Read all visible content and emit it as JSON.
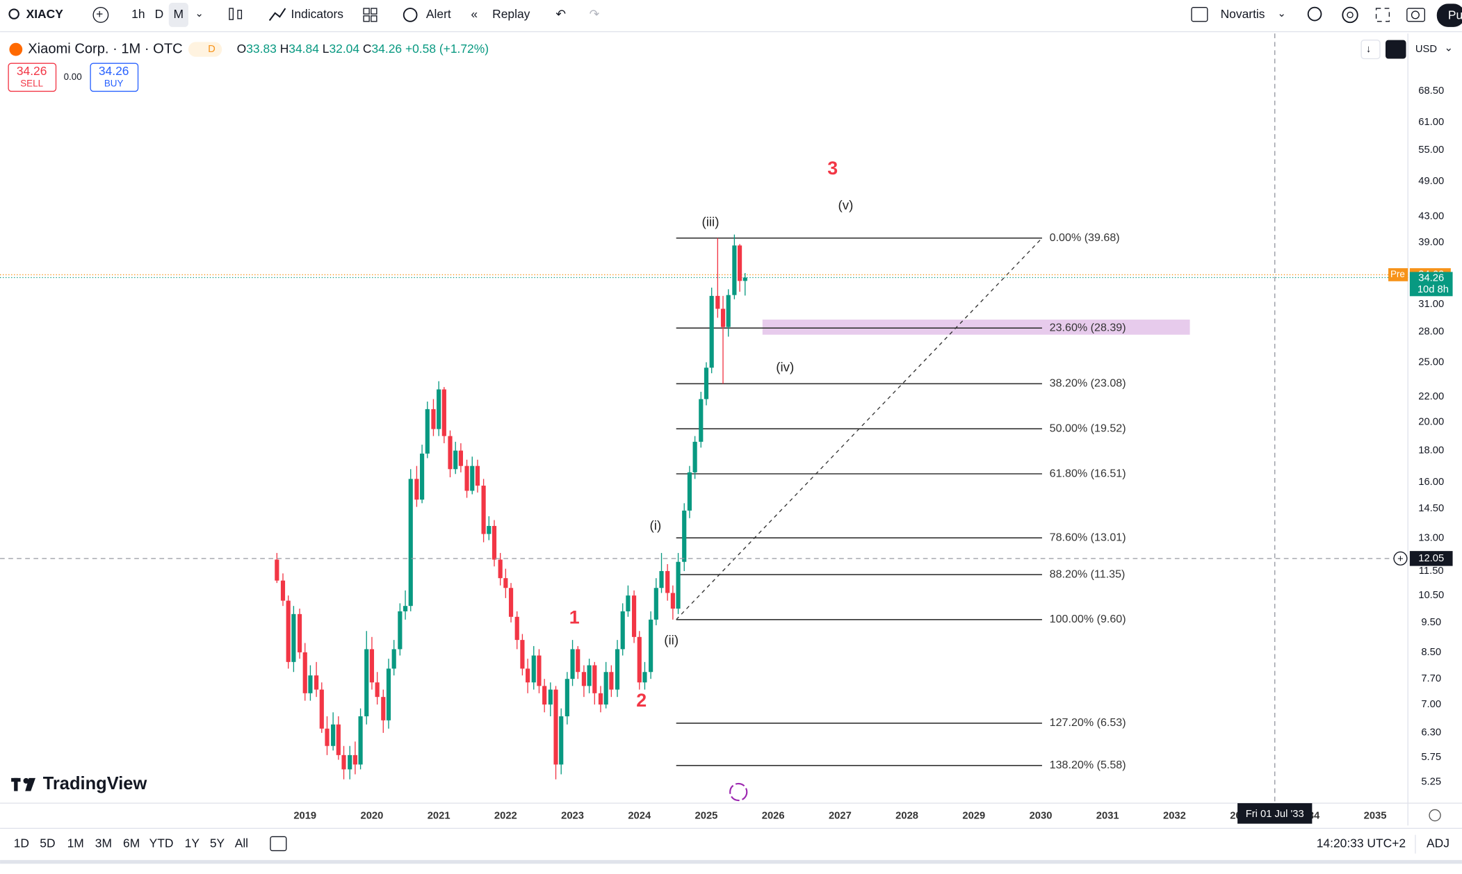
{
  "toolbar": {
    "symbol": "XIACY",
    "intervals": [
      "1h",
      "D",
      "M"
    ],
    "indicators": "Indicators",
    "alert": "Alert",
    "replay": "Replay",
    "watch": "Novartis",
    "user": "Pu"
  },
  "legend": {
    "title": "Xiaomi Corp. · 1M · OTC",
    "badge": "D",
    "o": "O",
    "h": "H",
    "l": "L",
    "c": "C",
    "change": "+0.58 (+1.72%)"
  },
  "trade": {
    "sell": "SELL",
    "buy": "BUY",
    "spread": "0.00"
  },
  "currency": "USD",
  "brand": "TradingView",
  "ranges": [
    "1D",
    "5D",
    "1M",
    "3M",
    "6M",
    "YTD",
    "1Y",
    "5Y",
    "All"
  ],
  "clock": "14:20:33 UTC+2",
  "adj": "ADJ",
  "chart_data": {
    "type": "candlestick",
    "up_color": "#089981",
    "down_color": "#f23645",
    "log_scale": true,
    "grid": false,
    "x": [
      2018.58,
      2018.67,
      2018.75,
      2018.83,
      2018.92,
      2019.0,
      2019.08,
      2019.17,
      2019.25,
      2019.33,
      2019.42,
      2019.5,
      2019.58,
      2019.67,
      2019.75,
      2019.83,
      2019.92,
      2020.0,
      2020.08,
      2020.17,
      2020.25,
      2020.33,
      2020.42,
      2020.5,
      2020.58,
      2020.67,
      2020.75,
      2020.83,
      2020.92,
      2021.0,
      2021.08,
      2021.17,
      2021.25,
      2021.33,
      2021.42,
      2021.5,
      2021.58,
      2021.67,
      2021.75,
      2021.83,
      2021.92,
      2022.0,
      2022.08,
      2022.17,
      2022.25,
      2022.33,
      2022.42,
      2022.5,
      2022.58,
      2022.67,
      2022.75,
      2022.83,
      2022.92,
      2023.0,
      2023.08,
      2023.17,
      2023.25,
      2023.33,
      2023.42,
      2023.5,
      2023.58,
      2023.67,
      2023.75,
      2023.83,
      2023.92,
      2024.0,
      2024.08,
      2024.17,
      2024.25,
      2024.33,
      2024.42,
      2024.5,
      2024.58,
      2024.67,
      2024.75,
      2024.83,
      2024.92,
      2025.0,
      2025.08,
      2025.17,
      2025.25,
      2025.33,
      2025.42,
      2025.5,
      2025.58
    ],
    "open": [
      12.0,
      11.1,
      10.3,
      8.2,
      9.8,
      8.5,
      7.3,
      7.8,
      7.4,
      6.4,
      6.0,
      6.5,
      5.8,
      5.5,
      5.8,
      5.6,
      6.7,
      8.6,
      7.6,
      7.2,
      6.6,
      8.0,
      8.6,
      9.9,
      10.1,
      16.2,
      15.0,
      17.8,
      21.0,
      19.5,
      22.6,
      19.0,
      16.8,
      18.0,
      17.0,
      15.5,
      17.0,
      15.8,
      13.2,
      13.6,
      12.0,
      11.2,
      10.8,
      9.7,
      8.9,
      8.0,
      7.6,
      8.4,
      7.5,
      7.0,
      7.4,
      5.6,
      6.7,
      7.7,
      8.6,
      7.9,
      7.5,
      8.1,
      7.3,
      7.0,
      7.9,
      7.4,
      8.6,
      9.9,
      10.5,
      9.0,
      7.6,
      7.9,
      9.6,
      10.8,
      11.5,
      10.6,
      10.0,
      11.9,
      14.4,
      16.6,
      18.6,
      21.8,
      24.5,
      32.0,
      30.5,
      28.5,
      32.1,
      38.6,
      33.83
    ],
    "high": [
      12.3,
      11.4,
      10.5,
      10.1,
      10.0,
      8.8,
      8.1,
      8.2,
      7.6,
      6.7,
      6.8,
      6.7,
      6.0,
      6.0,
      6.1,
      6.9,
      9.2,
      9.0,
      7.9,
      7.4,
      8.3,
      8.9,
      10.2,
      10.7,
      16.8,
      17.0,
      18.4,
      21.6,
      21.8,
      23.3,
      22.8,
      19.4,
      18.6,
      18.5,
      17.4,
      17.6,
      17.4,
      16.2,
      14.1,
      13.9,
      12.3,
      11.6,
      11.0,
      9.9,
      9.1,
      8.3,
      8.7,
      8.6,
      7.7,
      7.6,
      7.5,
      6.9,
      7.9,
      8.9,
      8.7,
      8.1,
      8.3,
      8.2,
      7.5,
      8.2,
      8.1,
      8.9,
      10.2,
      10.9,
      10.7,
      9.2,
      8.2,
      9.9,
      11.2,
      12.3,
      11.8,
      10.9,
      12.3,
      14.8,
      17.0,
      19.0,
      22.4,
      25.0,
      33.0,
      39.68,
      32.0,
      32.8,
      40.2,
      38.8,
      34.84
    ],
    "low": [
      11.0,
      10.1,
      8.0,
      7.9,
      8.3,
      7.1,
      7.1,
      7.2,
      6.3,
      5.8,
      5.9,
      5.7,
      5.3,
      5.3,
      5.4,
      5.5,
      6.5,
      7.4,
      7.0,
      6.3,
      6.4,
      7.8,
      8.4,
      9.6,
      9.9,
      14.6,
      14.8,
      17.5,
      19.0,
      19.0,
      18.5,
      16.3,
      16.5,
      16.6,
      15.1,
      15.3,
      15.4,
      12.8,
      12.9,
      11.7,
      10.9,
      10.4,
      9.5,
      8.6,
      7.8,
      7.3,
      7.4,
      7.3,
      6.8,
      6.7,
      5.3,
      5.4,
      6.5,
      7.5,
      7.7,
      7.2,
      7.3,
      7.0,
      6.8,
      6.9,
      7.2,
      7.2,
      8.4,
      9.7,
      8.8,
      7.4,
      7.4,
      7.7,
      9.4,
      10.6,
      10.3,
      9.6,
      9.8,
      11.5,
      14.0,
      16.2,
      18.2,
      21.3,
      24.0,
      29.5,
      23.08,
      27.5,
      31.6,
      32.5,
      32.04
    ],
    "close": [
      11.1,
      10.3,
      8.2,
      9.8,
      8.5,
      7.3,
      7.8,
      7.4,
      6.4,
      6.0,
      6.5,
      5.8,
      5.5,
      5.8,
      5.6,
      6.7,
      8.6,
      7.6,
      7.2,
      6.6,
      8.0,
      8.6,
      9.9,
      10.1,
      16.2,
      15.0,
      17.8,
      21.0,
      19.5,
      22.6,
      19.0,
      16.8,
      18.0,
      17.0,
      15.5,
      17.0,
      15.8,
      13.2,
      13.6,
      12.0,
      11.2,
      10.8,
      9.7,
      8.9,
      8.0,
      7.6,
      8.4,
      7.5,
      7.0,
      7.4,
      5.6,
      6.7,
      7.7,
      8.6,
      7.9,
      7.5,
      8.1,
      7.3,
      7.0,
      7.9,
      7.4,
      8.6,
      9.9,
      10.5,
      9.0,
      7.6,
      7.9,
      9.6,
      10.8,
      11.5,
      10.6,
      10.0,
      11.9,
      14.4,
      16.6,
      18.6,
      21.8,
      24.5,
      32.0,
      30.5,
      28.5,
      32.1,
      38.6,
      33.83,
      34.26
    ],
    "xlim": [
      2014.44,
      2035.49
    ],
    "xticks": [
      2019,
      2020,
      2021,
      2022,
      2023,
      2024,
      2025,
      2026,
      2027,
      2028,
      2029,
      2030,
      2031,
      2032,
      2033,
      2034,
      2035
    ],
    "ylim": [
      4.85,
      84.9
    ],
    "yticks": [
      {
        "value": 68.5,
        "label": "68.50"
      },
      {
        "value": 61,
        "label": "61.00"
      },
      {
        "value": 55,
        "label": "55.00"
      },
      {
        "value": 49,
        "label": "49.00"
      },
      {
        "value": 43,
        "label": "43.00"
      },
      {
        "value": 39,
        "label": "39.00"
      },
      {
        "value": 31,
        "label": "31.00"
      },
      {
        "value": 28,
        "label": "28.00"
      },
      {
        "value": 25,
        "label": "25.00"
      },
      {
        "value": 22,
        "label": "22.00"
      },
      {
        "value": 20,
        "label": "20.00"
      },
      {
        "value": 18,
        "label": "18.00"
      },
      {
        "value": 16,
        "label": "16.00"
      },
      {
        "value": 14.5,
        "label": "14.50"
      },
      {
        "value": 13,
        "label": "13.00"
      },
      {
        "value": 11.5,
        "label": "11.50"
      },
      {
        "value": 10.5,
        "label": "10.50"
      },
      {
        "value": 9.5,
        "label": "9.50"
      },
      {
        "value": 8.5,
        "label": "8.50"
      },
      {
        "value": 7.7,
        "label": "7.70"
      },
      {
        "value": 7,
        "label": "7.00"
      },
      {
        "value": 6.3,
        "label": "6.30"
      },
      {
        "value": 5.75,
        "label": "5.75"
      },
      {
        "value": 5.25,
        "label": "5.25"
      }
    ],
    "fib_color": "#333333",
    "fib_levels": [
      {
        "value": 39.68,
        "label": "0.00% (39.68)"
      },
      {
        "value": 28.39,
        "label": "23.60% (28.39)"
      },
      {
        "value": 23.08,
        "label": "38.20% (23.08)"
      },
      {
        "value": 19.52,
        "label": "50.00% (19.52)"
      },
      {
        "value": 16.51,
        "label": "61.80% (16.51)"
      },
      {
        "value": 13.01,
        "label": "78.60% (13.01)"
      },
      {
        "value": 11.35,
        "label": "88.20% (11.35)"
      },
      {
        "value": 9.6,
        "label": "100.00% (9.60)"
      },
      {
        "value": 6.53,
        "label": "127.20% (6.53)"
      },
      {
        "value": 5.58,
        "label": "138.20% (5.58)"
      }
    ],
    "trendline": {
      "x": [
        2024.55,
        2030.02
      ],
      "y": [
        9.6,
        39.68
      ]
    },
    "zone": {
      "x": [
        2025.84,
        2032.23
      ],
      "y": [
        27.7,
        29.3
      ],
      "color": "#e1bee7"
    },
    "wave_color": "#222222",
    "wave_labels": [
      "(i)",
      "(ii)",
      "(iii)",
      "(iv)",
      "(v)"
    ],
    "degree_color": "#f23645",
    "degree_labels": [
      "1",
      "2",
      "3"
    ],
    "countdown": "10d 8h",
    "premarket": {
      "label": "Pre",
      "value": 34.62,
      "color": "#f7931a"
    },
    "crosshair": {
      "x": 2033.5,
      "x_label": "Fri 01 Jul '33",
      "y": 12.05
    }
  }
}
